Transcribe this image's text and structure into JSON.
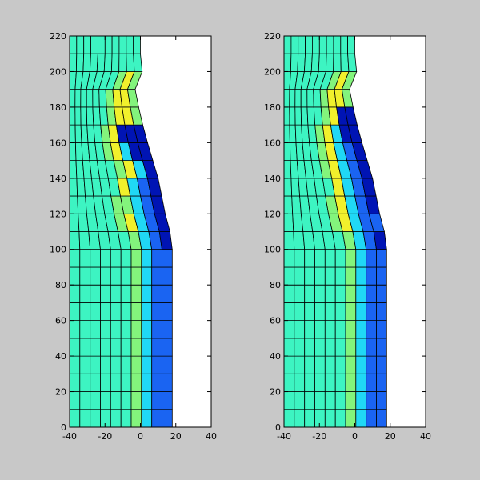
{
  "figure": {
    "background_color": "#c8c8c8",
    "plot_background_color": "#ffffff",
    "grid_line_color": "#000000"
  },
  "mesh": {
    "columns": 10,
    "rows": 22,
    "y_bottom": 0,
    "y_top": 220,
    "left_x": -40,
    "left_x_top": -40,
    "right_x_bottom": 18,
    "right_x_top": 0,
    "profile": [
      {
        "y": 0,
        "x": 18
      },
      {
        "y": 100,
        "x": 18
      },
      {
        "y": 105,
        "x": 18
      },
      {
        "y": 120,
        "x": 14
      },
      {
        "y": 140,
        "x": 10
      },
      {
        "y": 160,
        "x": 4
      },
      {
        "y": 175,
        "x": 0
      },
      {
        "y": 190,
        "x": -3
      },
      {
        "y": 200,
        "x": 1
      },
      {
        "y": 205,
        "x": 0
      },
      {
        "y": 220,
        "x": 0
      }
    ],
    "left_bulge": 4
  },
  "colors": {
    "c1": "#3df4c2",
    "c2": "#83f47c",
    "c3": "#f1f02c",
    "c4": "#20d8f5",
    "c5": "#1a64f2",
    "c6": "#0014b4"
  },
  "chart_data": [
    {
      "type": "heatmap",
      "name": "",
      "xlim": [
        -40,
        40
      ],
      "ylim": [
        0,
        220
      ],
      "xticks": [
        "-40",
        "-20",
        "0",
        "20",
        "40"
      ],
      "yticks": [
        "0",
        "20",
        "40",
        "60",
        "80",
        "100",
        "120",
        "140",
        "160",
        "180",
        "200",
        "220"
      ],
      "color_rows": [
        [
          "c1",
          "c1",
          "c1",
          "c1",
          "c1",
          "c1",
          "c2",
          "c4",
          "c5",
          "c5"
        ],
        [
          "c1",
          "c1",
          "c1",
          "c1",
          "c1",
          "c1",
          "c2",
          "c4",
          "c5",
          "c5"
        ],
        [
          "c1",
          "c1",
          "c1",
          "c1",
          "c1",
          "c1",
          "c2",
          "c4",
          "c5",
          "c5"
        ],
        [
          "c1",
          "c1",
          "c1",
          "c1",
          "c1",
          "c1",
          "c2",
          "c4",
          "c5",
          "c5"
        ],
        [
          "c1",
          "c1",
          "c1",
          "c1",
          "c1",
          "c1",
          "c2",
          "c4",
          "c5",
          "c5"
        ],
        [
          "c1",
          "c1",
          "c1",
          "c1",
          "c1",
          "c1",
          "c2",
          "c4",
          "c5",
          "c5"
        ],
        [
          "c1",
          "c1",
          "c1",
          "c1",
          "c1",
          "c1",
          "c2",
          "c4",
          "c5",
          "c5"
        ],
        [
          "c1",
          "c1",
          "c1",
          "c1",
          "c1",
          "c1",
          "c2",
          "c4",
          "c5",
          "c5"
        ],
        [
          "c1",
          "c1",
          "c1",
          "c1",
          "c1",
          "c1",
          "c2",
          "c4",
          "c5",
          "c5"
        ],
        [
          "c1",
          "c1",
          "c1",
          "c1",
          "c1",
          "c1",
          "c2",
          "c4",
          "c5",
          "c5"
        ],
        [
          "c1",
          "c1",
          "c1",
          "c1",
          "c1",
          "c1",
          "c2",
          "c4",
          "c5",
          "c6"
        ],
        [
          "c1",
          "c1",
          "c1",
          "c1",
          "c1",
          "c2",
          "c3",
          "c4",
          "c5",
          "c6"
        ],
        [
          "c1",
          "c1",
          "c1",
          "c1",
          "c1",
          "c2",
          "c2",
          "c4",
          "c5",
          "c6"
        ],
        [
          "c1",
          "c1",
          "c1",
          "c1",
          "c1",
          "c1",
          "c3",
          "c4",
          "c5",
          "c6"
        ],
        [
          "c1",
          "c1",
          "c1",
          "c1",
          "c1",
          "c1",
          "c2",
          "c3",
          "c4",
          "c6"
        ],
        [
          "c1",
          "c1",
          "c1",
          "c1",
          "c1",
          "c2",
          "c3",
          "c4",
          "c6",
          "c6"
        ],
        [
          "c1",
          "c1",
          "c1",
          "c1",
          "c1",
          "c2",
          "c3",
          "c6",
          "c6",
          "c6"
        ],
        [
          "c1",
          "c1",
          "c1",
          "c1",
          "c1",
          "c1",
          "c2",
          "c3",
          "c3",
          "c2"
        ],
        [
          "c1",
          "c1",
          "c1",
          "c1",
          "c1",
          "c1",
          "c2",
          "c3",
          "c3",
          "c2"
        ],
        [
          "c1",
          "c1",
          "c1",
          "c1",
          "c1",
          "c1",
          "c1",
          "c2",
          "c3",
          "c2"
        ],
        [
          "c1",
          "c1",
          "c1",
          "c1",
          "c1",
          "c1",
          "c1",
          "c1",
          "c1",
          "c1"
        ],
        [
          "c1",
          "c1",
          "c1",
          "c1",
          "c1",
          "c1",
          "c1",
          "c1",
          "c1",
          "c1"
        ]
      ]
    },
    {
      "type": "heatmap",
      "name": "",
      "xlim": [
        -40,
        40
      ],
      "ylim": [
        0,
        220
      ],
      "xticks": [
        "-40",
        "-20",
        "0",
        "20",
        "40"
      ],
      "yticks": [
        "0",
        "20",
        "40",
        "60",
        "80",
        "100",
        "120",
        "140",
        "160",
        "180",
        "200",
        "220"
      ],
      "color_rows": [
        [
          "c1",
          "c1",
          "c1",
          "c1",
          "c1",
          "c1",
          "c2",
          "c4",
          "c5",
          "c5"
        ],
        [
          "c1",
          "c1",
          "c1",
          "c1",
          "c1",
          "c1",
          "c2",
          "c4",
          "c5",
          "c5"
        ],
        [
          "c1",
          "c1",
          "c1",
          "c1",
          "c1",
          "c1",
          "c2",
          "c4",
          "c5",
          "c5"
        ],
        [
          "c1",
          "c1",
          "c1",
          "c1",
          "c1",
          "c1",
          "c2",
          "c4",
          "c5",
          "c5"
        ],
        [
          "c1",
          "c1",
          "c1",
          "c1",
          "c1",
          "c1",
          "c2",
          "c4",
          "c5",
          "c5"
        ],
        [
          "c1",
          "c1",
          "c1",
          "c1",
          "c1",
          "c1",
          "c2",
          "c4",
          "c5",
          "c5"
        ],
        [
          "c1",
          "c1",
          "c1",
          "c1",
          "c1",
          "c1",
          "c2",
          "c4",
          "c5",
          "c5"
        ],
        [
          "c1",
          "c1",
          "c1",
          "c1",
          "c1",
          "c1",
          "c2",
          "c4",
          "c5",
          "c5"
        ],
        [
          "c1",
          "c1",
          "c1",
          "c1",
          "c1",
          "c1",
          "c2",
          "c4",
          "c5",
          "c5"
        ],
        [
          "c1",
          "c1",
          "c1",
          "c1",
          "c1",
          "c1",
          "c2",
          "c4",
          "c5",
          "c5"
        ],
        [
          "c1",
          "c1",
          "c1",
          "c1",
          "c1",
          "c1",
          "c2",
          "c4",
          "c5",
          "c6"
        ],
        [
          "c1",
          "c1",
          "c1",
          "c1",
          "c1",
          "c2",
          "c3",
          "c4",
          "c5",
          "c5"
        ],
        [
          "c1",
          "c1",
          "c1",
          "c1",
          "c1",
          "c2",
          "c3",
          "c4",
          "c5",
          "c6"
        ],
        [
          "c1",
          "c1",
          "c1",
          "c1",
          "c1",
          "c1",
          "c3",
          "c4",
          "c5",
          "c6"
        ],
        [
          "c1",
          "c1",
          "c1",
          "c1",
          "c1",
          "c2",
          "c3",
          "c4",
          "c5",
          "c6"
        ],
        [
          "c1",
          "c1",
          "c1",
          "c1",
          "c1",
          "c2",
          "c3",
          "c4",
          "c5",
          "c6"
        ],
        [
          "c1",
          "c1",
          "c1",
          "c1",
          "c1",
          "c2",
          "c3",
          "c4",
          "c6",
          "c6"
        ],
        [
          "c1",
          "c1",
          "c1",
          "c1",
          "c1",
          "c1",
          "c2",
          "c3",
          "c6",
          "c6"
        ],
        [
          "c1",
          "c1",
          "c1",
          "c1",
          "c1",
          "c1",
          "c2",
          "c3",
          "c3",
          "c2"
        ],
        [
          "c1",
          "c1",
          "c1",
          "c1",
          "c1",
          "c1",
          "c1",
          "c2",
          "c3",
          "c2"
        ],
        [
          "c1",
          "c1",
          "c1",
          "c1",
          "c1",
          "c1",
          "c1",
          "c1",
          "c1",
          "c1"
        ],
        [
          "c1",
          "c1",
          "c1",
          "c1",
          "c1",
          "c1",
          "c1",
          "c1",
          "c1",
          "c1"
        ]
      ]
    }
  ]
}
